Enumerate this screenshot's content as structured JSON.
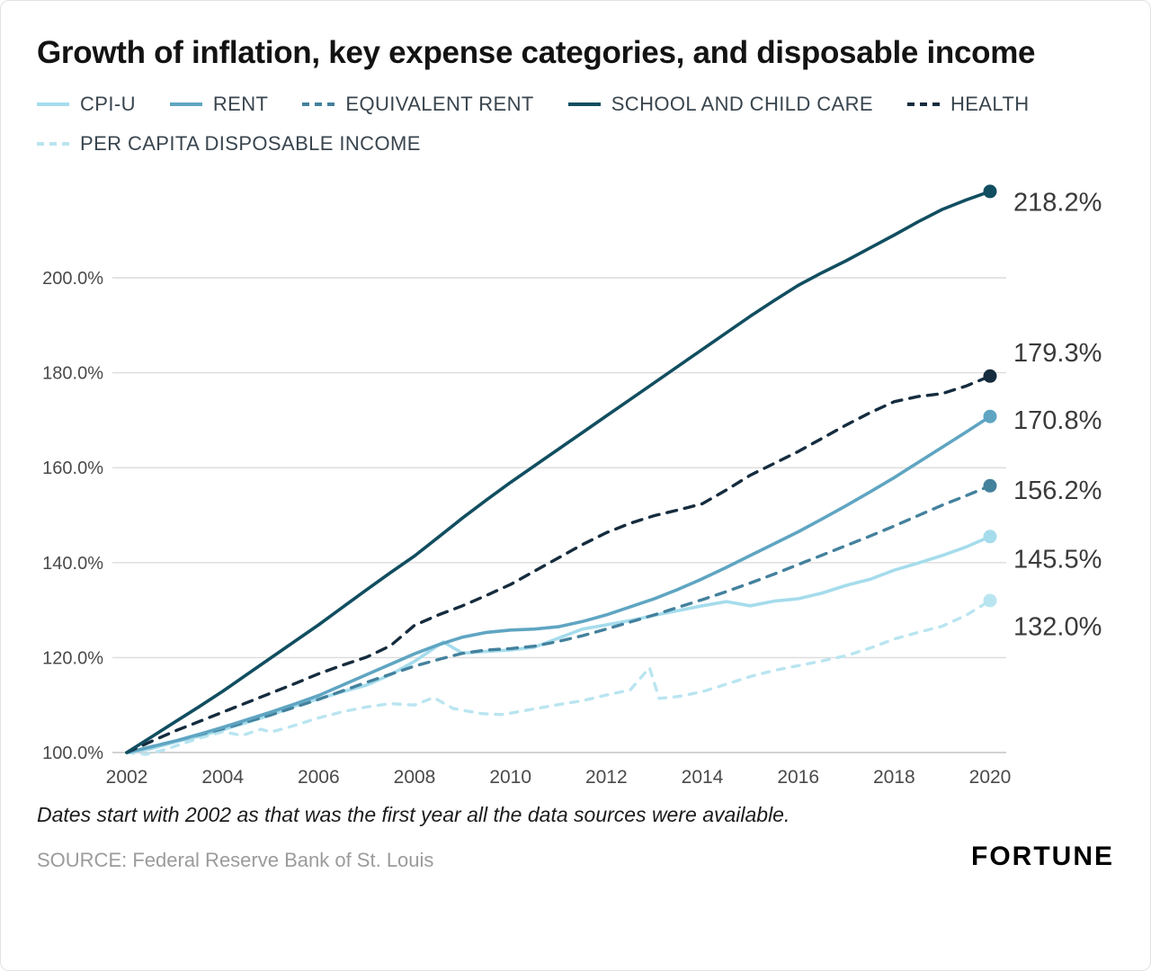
{
  "title": "Growth of inflation, key expense categories, and disposable income",
  "footnote": "Dates start with 2002 as that was the first year all the data sources were available.",
  "source": "SOURCE: Federal Reserve Bank of St. Louis",
  "brand": "FORTUNE",
  "colors": {
    "grid": "#dcdcdc",
    "baseline": "#c4c4c4",
    "axis_text": "#4a4a4a",
    "end_label_text": "#3a3a3a"
  },
  "chart_data": {
    "type": "line",
    "title": "Growth of inflation, key expense categories, and disposable income",
    "xlabel": "",
    "ylabel": "",
    "xlim": [
      2002,
      2020
    ],
    "ylim": [
      97,
      222
    ],
    "grid": "horizontal",
    "legend_position": "top",
    "x_ticks": [
      {
        "v": 2002,
        "label": "2002"
      },
      {
        "v": 2004,
        "label": "2004"
      },
      {
        "v": 2006,
        "label": "2006"
      },
      {
        "v": 2008,
        "label": "2008"
      },
      {
        "v": 2010,
        "label": "2010"
      },
      {
        "v": 2012,
        "label": "2012"
      },
      {
        "v": 2014,
        "label": "2014"
      },
      {
        "v": 2016,
        "label": "2016"
      },
      {
        "v": 2018,
        "label": "2018"
      },
      {
        "v": 2020,
        "label": "2020"
      }
    ],
    "y_ticks": [
      {
        "v": 100,
        "label": "100.0%"
      },
      {
        "v": 120,
        "label": "120.0%"
      },
      {
        "v": 140,
        "label": "140.0%"
      },
      {
        "v": 160,
        "label": "160.0%"
      },
      {
        "v": 180,
        "label": "180.0%"
      },
      {
        "v": 200,
        "label": "200.0%"
      }
    ],
    "series": [
      {
        "name": "CPI-U",
        "color": "#a5dcec",
        "dash": false,
        "end_value": 145.5,
        "end_label": "145.5%",
        "points": [
          [
            2002,
            100
          ],
          [
            2002.5,
            100.8
          ],
          [
            2003,
            102.2
          ],
          [
            2003.5,
            103.4
          ],
          [
            2004,
            104.8
          ],
          [
            2004.5,
            106.3
          ],
          [
            2005,
            107.9
          ],
          [
            2005.5,
            109.8
          ],
          [
            2006,
            111.3
          ],
          [
            2006.5,
            112.8
          ],
          [
            2007,
            114.2
          ],
          [
            2007.5,
            116.4
          ],
          [
            2008,
            119.2
          ],
          [
            2008.6,
            123.3
          ],
          [
            2009,
            120.9
          ],
          [
            2009.5,
            121.3
          ],
          [
            2010,
            121.6
          ],
          [
            2010.5,
            122.2
          ],
          [
            2011,
            124.1
          ],
          [
            2011.5,
            126.0
          ],
          [
            2012,
            126.9
          ],
          [
            2012.5,
            127.8
          ],
          [
            2013,
            128.9
          ],
          [
            2013.5,
            129.9
          ],
          [
            2014,
            130.9
          ],
          [
            2014.5,
            131.8
          ],
          [
            2015,
            130.9
          ],
          [
            2015.5,
            131.9
          ],
          [
            2016,
            132.4
          ],
          [
            2016.5,
            133.6
          ],
          [
            2017,
            135.2
          ],
          [
            2017.5,
            136.5
          ],
          [
            2018,
            138.4
          ],
          [
            2018.5,
            139.9
          ],
          [
            2019,
            141.5
          ],
          [
            2019.5,
            143.3
          ],
          [
            2020,
            145.5
          ]
        ]
      },
      {
        "name": "RENT",
        "color": "#5fa5c2",
        "dash": false,
        "end_value": 170.8,
        "end_label": "170.8%",
        "points": [
          [
            2002,
            100
          ],
          [
            2002.5,
            101.2
          ],
          [
            2003,
            102.4
          ],
          [
            2003.5,
            103.8
          ],
          [
            2004,
            105.3
          ],
          [
            2004.5,
            106.9
          ],
          [
            2005,
            108.5
          ],
          [
            2005.5,
            110.2
          ],
          [
            2006,
            112.0
          ],
          [
            2006.5,
            114.2
          ],
          [
            2007,
            116.4
          ],
          [
            2007.5,
            118.6
          ],
          [
            2008,
            120.8
          ],
          [
            2008.5,
            122.7
          ],
          [
            2009,
            124.3
          ],
          [
            2009.5,
            125.3
          ],
          [
            2010,
            125.8
          ],
          [
            2010.5,
            126.0
          ],
          [
            2011,
            126.5
          ],
          [
            2011.5,
            127.6
          ],
          [
            2012,
            129.0
          ],
          [
            2012.5,
            130.7
          ],
          [
            2013,
            132.4
          ],
          [
            2013.5,
            134.4
          ],
          [
            2014,
            136.6
          ],
          [
            2014.5,
            139.0
          ],
          [
            2015,
            141.5
          ],
          [
            2015.5,
            144.0
          ],
          [
            2016,
            146.5
          ],
          [
            2016.5,
            149.2
          ],
          [
            2017,
            152.0
          ],
          [
            2017.5,
            154.9
          ],
          [
            2018,
            157.9
          ],
          [
            2018.5,
            161.1
          ],
          [
            2019,
            164.3
          ],
          [
            2019.5,
            167.5
          ],
          [
            2020,
            170.8
          ]
        ]
      },
      {
        "name": "EQUIVALENT RENT",
        "color": "#44819d",
        "dash": true,
        "end_value": 156.2,
        "end_label": "156.2%",
        "points": [
          [
            2002,
            100
          ],
          [
            2003,
            102.4
          ],
          [
            2004,
            105.0
          ],
          [
            2005,
            107.9
          ],
          [
            2006,
            111.2
          ],
          [
            2007,
            114.8
          ],
          [
            2008,
            118.2
          ],
          [
            2008.5,
            119.6
          ],
          [
            2009,
            120.9
          ],
          [
            2009.5,
            121.6
          ],
          [
            2010,
            121.9
          ],
          [
            2010.5,
            122.4
          ],
          [
            2011,
            123.4
          ],
          [
            2011.5,
            124.6
          ],
          [
            2012,
            126.0
          ],
          [
            2012.5,
            127.5
          ],
          [
            2013,
            129.0
          ],
          [
            2013.5,
            130.6
          ],
          [
            2014,
            132.2
          ],
          [
            2014.5,
            133.9
          ],
          [
            2015,
            135.7
          ],
          [
            2015.5,
            137.6
          ],
          [
            2016,
            139.6
          ],
          [
            2016.5,
            141.6
          ],
          [
            2017,
            143.6
          ],
          [
            2017.5,
            145.6
          ],
          [
            2018,
            147.7
          ],
          [
            2018.5,
            149.9
          ],
          [
            2019,
            152.1
          ],
          [
            2019.5,
            154.1
          ],
          [
            2020,
            156.2
          ]
        ]
      },
      {
        "name": "SCHOOL AND CHILD CARE",
        "color": "#114e60",
        "dash": false,
        "end_value": 218.2,
        "end_label": "218.2%",
        "points": [
          [
            2002,
            100
          ],
          [
            2002.5,
            103.2
          ],
          [
            2003,
            106.4
          ],
          [
            2003.5,
            109.6
          ],
          [
            2004,
            112.9
          ],
          [
            2004.5,
            116.4
          ],
          [
            2005,
            119.9
          ],
          [
            2005.5,
            123.4
          ],
          [
            2006,
            126.9
          ],
          [
            2006.5,
            130.6
          ],
          [
            2007,
            134.3
          ],
          [
            2007.5,
            137.9
          ],
          [
            2008,
            141.4
          ],
          [
            2008.5,
            145.4
          ],
          [
            2009,
            149.4
          ],
          [
            2009.5,
            153.2
          ],
          [
            2010,
            156.9
          ],
          [
            2010.5,
            160.4
          ],
          [
            2011,
            163.9
          ],
          [
            2011.5,
            167.4
          ],
          [
            2012,
            170.9
          ],
          [
            2012.5,
            174.4
          ],
          [
            2013,
            177.9
          ],
          [
            2013.5,
            181.4
          ],
          [
            2014,
            184.9
          ],
          [
            2014.5,
            188.4
          ],
          [
            2015,
            191.9
          ],
          [
            2015.5,
            195.2
          ],
          [
            2016,
            198.4
          ],
          [
            2016.5,
            201.1
          ],
          [
            2017,
            203.6
          ],
          [
            2017.5,
            206.3
          ],
          [
            2018,
            209.0
          ],
          [
            2018.5,
            211.8
          ],
          [
            2019,
            214.4
          ],
          [
            2019.5,
            216.4
          ],
          [
            2020,
            218.2
          ]
        ]
      },
      {
        "name": "HEALTH",
        "color": "#152c3e",
        "dash": true,
        "end_value": 179.3,
        "end_label": "179.3%",
        "points": [
          [
            2002,
            100
          ],
          [
            2002.5,
            102.3
          ],
          [
            2003,
            104.5
          ],
          [
            2003.5,
            106.5
          ],
          [
            2004,
            108.5
          ],
          [
            2004.5,
            110.5
          ],
          [
            2005,
            112.5
          ],
          [
            2005.5,
            114.5
          ],
          [
            2006,
            116.6
          ],
          [
            2006.5,
            118.4
          ],
          [
            2007,
            120.1
          ],
          [
            2007.5,
            122.5
          ],
          [
            2008,
            126.8
          ],
          [
            2008.5,
            129.0
          ],
          [
            2009,
            130.9
          ],
          [
            2009.5,
            133.1
          ],
          [
            2010,
            135.4
          ],
          [
            2010.5,
            138.2
          ],
          [
            2011,
            141.0
          ],
          [
            2011.5,
            143.8
          ],
          [
            2012,
            146.3
          ],
          [
            2012.5,
            148.3
          ],
          [
            2013,
            149.9
          ],
          [
            2013.5,
            151.1
          ],
          [
            2014,
            152.4
          ],
          [
            2014.5,
            155.3
          ],
          [
            2015,
            158.4
          ],
          [
            2015.5,
            160.9
          ],
          [
            2016,
            163.4
          ],
          [
            2016.5,
            166.2
          ],
          [
            2017,
            169.0
          ],
          [
            2017.5,
            171.6
          ],
          [
            2018,
            173.9
          ],
          [
            2018.5,
            175.0
          ],
          [
            2019,
            175.6
          ],
          [
            2019.5,
            177.2
          ],
          [
            2020,
            179.3
          ]
        ]
      },
      {
        "name": "PER CAPITA DISPOSABLE INCOME",
        "color": "#b9e5f0",
        "dash": true,
        "end_value": 132.0,
        "end_label": "132.0%",
        "points": [
          [
            2002,
            100
          ],
          [
            2002.4,
            99.6
          ],
          [
            2002.8,
            100.6
          ],
          [
            2003,
            101.3
          ],
          [
            2003.5,
            103.0
          ],
          [
            2004,
            104.4
          ],
          [
            2004.4,
            103.6
          ],
          [
            2004.8,
            104.9
          ],
          [
            2005,
            104.3
          ],
          [
            2005.4,
            105.4
          ],
          [
            2006,
            107.3
          ],
          [
            2006.5,
            108.6
          ],
          [
            2007,
            109.6
          ],
          [
            2007.5,
            110.3
          ],
          [
            2008,
            110.0
          ],
          [
            2008.4,
            111.6
          ],
          [
            2008.8,
            109.3
          ],
          [
            2009,
            108.9
          ],
          [
            2009.4,
            108.2
          ],
          [
            2009.8,
            108.0
          ],
          [
            2010,
            108.3
          ],
          [
            2010.5,
            109.2
          ],
          [
            2011,
            110.1
          ],
          [
            2011.5,
            110.9
          ],
          [
            2012,
            112.1
          ],
          [
            2012.5,
            113.2
          ],
          [
            2012.9,
            117.9
          ],
          [
            2013.1,
            111.4
          ],
          [
            2013.5,
            111.8
          ],
          [
            2014,
            112.8
          ],
          [
            2014.5,
            114.4
          ],
          [
            2015,
            116.0
          ],
          [
            2015.5,
            117.3
          ],
          [
            2016,
            118.3
          ],
          [
            2016.5,
            119.3
          ],
          [
            2017,
            120.4
          ],
          [
            2017.5,
            122.0
          ],
          [
            2018,
            123.9
          ],
          [
            2018.5,
            125.3
          ],
          [
            2019,
            126.6
          ],
          [
            2019.5,
            128.9
          ],
          [
            2020,
            132.0
          ]
        ]
      }
    ]
  }
}
